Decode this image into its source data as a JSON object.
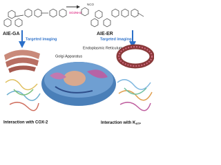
{
  "compounds": [
    {
      "name": "AIE-GA",
      "action": "Targeted imaging",
      "group": "SO2NH2"
    },
    {
      "name": "AIE-ER",
      "action": "Targeted imaging",
      "group": "NCO"
    }
  ],
  "organelles": [
    "Golgi Apparatus",
    "Endoplasmic Reticulum"
  ],
  "interactions": [
    {
      "text": "Interaction with COX-2"
    },
    {
      "text": "Interaction with K",
      "subscript": "ATP"
    }
  ]
}
